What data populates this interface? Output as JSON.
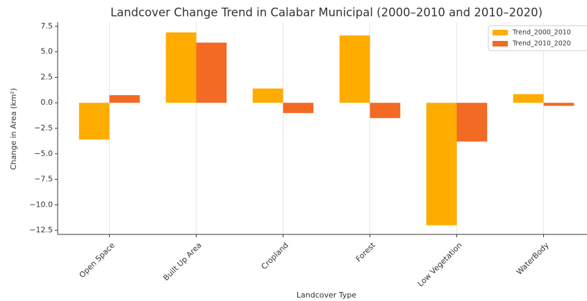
{
  "chart_data": {
    "type": "bar",
    "title": "Landcover Change Trend in Calabar Municipal (2000–2010 and 2010–2020)",
    "xlabel": "Landcover Type",
    "ylabel": "Change in Area (km²)",
    "categories": [
      "Open Space",
      "Built Up Area",
      "Cropland",
      "Forest",
      "Low Vegetation",
      "WaterBody"
    ],
    "series": [
      {
        "name": "Trend_2000_2010",
        "color": "#ffac00",
        "values": [
          -3.6,
          6.9,
          1.4,
          6.6,
          -12.0,
          0.85
        ]
      },
      {
        "name": "Trend_2010_2020",
        "color": "#f26a24",
        "values": [
          0.75,
          5.9,
          -1.0,
          -1.5,
          -3.8,
          -0.3
        ]
      }
    ],
    "ylim": [
      -12.9,
      7.9
    ],
    "yticks": [
      {
        "value": 7.5,
        "label": "7.5"
      },
      {
        "value": 5,
        "label": "5.0"
      },
      {
        "value": 2.5,
        "label": "2.5"
      },
      {
        "value": 0,
        "label": "0.0"
      },
      {
        "value": -2.5,
        "label": "−2.5"
      },
      {
        "value": -5,
        "label": "−5.0"
      },
      {
        "value": -7.5,
        "label": "−7.5"
      },
      {
        "value": -10,
        "label": "−10.0"
      },
      {
        "value": -12.5,
        "label": "−12.5"
      }
    ],
    "grid": true,
    "legend": "upper right"
  }
}
